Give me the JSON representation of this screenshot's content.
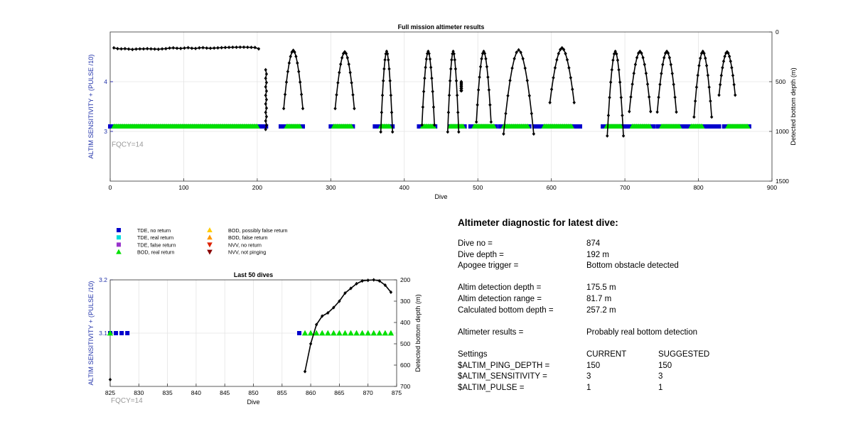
{
  "chart_data": [
    {
      "type": "scatter",
      "title": "Full mission altimeter results",
      "xlabel": "Dive",
      "ylabel_left": "ALTIM SENSITIVITY + (PULSE /10)",
      "ylabel_right": "Detected bottom depth (m)",
      "annotation": "FQCY=14",
      "xlim": [
        0,
        900
      ],
      "x_ticks": [
        "0",
        "100",
        "200",
        "300",
        "400",
        "500",
        "600",
        "700",
        "800",
        "900"
      ],
      "ylim_left": [
        2,
        5
      ],
      "y_ticks_left": [
        "3",
        "4"
      ],
      "ylim_right": [
        1500,
        0
      ],
      "y_ticks_right": [
        "0",
        "500",
        "1000",
        "1500"
      ],
      "grid": true,
      "series": [
        {
          "name": "TDE, no return",
          "color": "#0000cc",
          "marker": "square",
          "y": 3.1,
          "x_ranges": [
            [
              0,
              205
            ],
            [
              208,
              212
            ],
            [
              232,
              262
            ],
            [
              300,
              330
            ],
            [
              360,
              385
            ],
            [
              420,
              442
            ],
            [
              462,
              482
            ],
            [
              490,
              525
            ],
            [
              530,
              570
            ],
            [
              577,
              640
            ],
            [
              670,
              700
            ],
            [
              705,
              740
            ],
            [
              745,
              785
            ],
            [
              790,
              828
            ],
            [
              835,
              870
            ]
          ]
        },
        {
          "name": "BOD, real return",
          "color": "#00e000",
          "marker": "triangle",
          "y": 3.1,
          "x_ranges": [
            [
              5,
              200
            ],
            [
              240,
              258
            ],
            [
              304,
              328
            ],
            [
              368,
              380
            ],
            [
              425,
              440
            ],
            [
              462,
              480
            ],
            [
              495,
              522
            ],
            [
              535,
              568
            ],
            [
              590,
              628
            ],
            [
              675,
              695
            ],
            [
              710,
              735
            ],
            [
              750,
              775
            ],
            [
              790,
              806
            ],
            [
              840,
              868
            ]
          ]
        },
        {
          "name": "Detected bottom depth",
          "color": "#000000",
          "marker": "diamond",
          "axis": "right",
          "flat": {
            "x_start": 5,
            "x_end": 202,
            "depths": [
              160,
              168,
              170,
              168,
              172,
              176,
              172,
              170,
              170,
              168,
              170,
              172,
              174,
              170,
              168,
              162,
              160,
              164,
              166,
              162,
              158,
              164,
              166,
              160,
              158,
              162,
              164,
              162,
              160,
              158,
              156,
              155,
              154,
              154,
              153,
              153,
              154,
              155,
              156,
              170
            ]
          },
          "arcs": [
            {
              "x0": 212,
              "x1": 212,
              "apex": 380,
              "bottom": 980
            },
            {
              "x0": 236,
              "x1": 262,
              "apex": 185,
              "bottom": 770
            },
            {
              "x0": 306,
              "x1": 332,
              "apex": 200,
              "bottom": 770
            },
            {
              "x0": 368,
              "x1": 384,
              "apex": 195,
              "bottom": 1005
            },
            {
              "x0": 424,
              "x1": 441,
              "apex": 195,
              "bottom": 935
            },
            {
              "x0": 459,
              "x1": 474,
              "apex": 195,
              "bottom": 1005
            },
            {
              "x0": 477,
              "x1": 478,
              "apex": 500,
              "bottom": 590
            },
            {
              "x0": 498,
              "x1": 518,
              "apex": 195,
              "bottom": 905
            },
            {
              "x0": 535,
              "x1": 576,
              "apex": 180,
              "bottom": 1025
            },
            {
              "x0": 598,
              "x1": 631,
              "apex": 160,
              "bottom": 710
            },
            {
              "x0": 676,
              "x1": 698,
              "apex": 195,
              "bottom": 1045
            },
            {
              "x0": 706,
              "x1": 735,
              "apex": 195,
              "bottom": 800
            },
            {
              "x0": 744,
              "x1": 770,
              "apex": 195,
              "bottom": 805
            },
            {
              "x0": 794,
              "x1": 818,
              "apex": 195,
              "bottom": 855
            },
            {
              "x0": 828,
              "x1": 850,
              "apex": 200,
              "bottom": 635
            }
          ]
        }
      ]
    },
    {
      "type": "scatter",
      "title": "Last 50 dives",
      "xlabel": "Dive",
      "ylabel_left": "ALTIM SENSITIVITY + (PULSE /10)",
      "ylabel_right": "Detected bottom depth (m)",
      "annotation": "FQCY=14",
      "xlim": [
        825,
        875
      ],
      "x_ticks": [
        "825",
        "830",
        "835",
        "840",
        "845",
        "850",
        "855",
        "860",
        "865",
        "870",
        "875"
      ],
      "ylim_left": [
        3,
        3.2
      ],
      "y_ticks_left": [
        "3.1",
        "3.2"
      ],
      "ylim_right": [
        700,
        200
      ],
      "y_ticks_right": [
        "200",
        "300",
        "400",
        "500",
        "600",
        "700"
      ],
      "grid": true,
      "series": [
        {
          "name": "TDE, no return",
          "color": "#0000cc",
          "marker": "square",
          "y": 3.1,
          "x": [
            825,
            826,
            827,
            828,
            858
          ]
        },
        {
          "name": "BOD, real return",
          "color": "#00e000",
          "marker": "triangle",
          "y": 3.1,
          "x": [
            825,
            859,
            860,
            861,
            862,
            863,
            864,
            865,
            866,
            867,
            868,
            869,
            870,
            871,
            872,
            873,
            874
          ]
        },
        {
          "name": "Detected bottom depth",
          "color": "#000000",
          "marker": "diamond",
          "axis": "right",
          "x": [
            825,
            859,
            860,
            861,
            862,
            863,
            864,
            865,
            866,
            867,
            868,
            869,
            870,
            871,
            872,
            873,
            874
          ],
          "y": [
            668,
            630,
            500,
            410,
            370,
            355,
            330,
            300,
            262,
            240,
            218,
            205,
            202,
            200,
            205,
            225,
            258
          ]
        }
      ]
    }
  ],
  "legend": [
    {
      "label": "TDE, no return",
      "color": "#0000cc",
      "marker": "square"
    },
    {
      "label": "TDE, real return",
      "color": "#00dddd",
      "marker": "square"
    },
    {
      "label": "TDE, false return",
      "color": "#9933cc",
      "marker": "square"
    },
    {
      "label": "BOD, real return",
      "color": "#00e000",
      "marker": "triangle"
    },
    {
      "label": "BOD, possibly false return",
      "color": "#ffcc00",
      "marker": "triangle"
    },
    {
      "label": "BOD, false return",
      "color": "#ff9900",
      "marker": "triangle"
    },
    {
      "label": "NVV, no return",
      "color": "#dd2200",
      "marker": "triangle-down"
    },
    {
      "label": "NVV, not pinging",
      "color": "#880000",
      "marker": "triangle-down"
    }
  ],
  "diagnostic": {
    "title": "Altimeter diagnostic for latest dive:",
    "dive_no_label": "Dive no =",
    "dive_no": "874",
    "dive_depth_label": "Dive depth =",
    "dive_depth": "192 m",
    "apogee_label": "Apogee trigger =",
    "apogee": "Bottom obstacle detected",
    "altim_det_depth_label": "Altim detection depth =",
    "altim_det_depth": "175.5 m",
    "altim_det_range_label": "Altim detection range =",
    "altim_det_range": "81.7 m",
    "calc_bottom_label": "Calculated bottom depth =",
    "calc_bottom": "257.2 m",
    "results_label": "Altimeter results =",
    "results": "Probably real bottom detection",
    "settings_label": "Settings",
    "current_label": "CURRENT",
    "suggested_label": "SUGGESTED",
    "ping_depth_label": "$ALTIM_PING_DEPTH =",
    "ping_depth_current": "150",
    "ping_depth_suggested": "150",
    "sensitivity_label": "$ALTIM_SENSITIVITY =",
    "sensitivity_current": "3",
    "sensitivity_suggested": "3",
    "pulse_label": "$ALTIM_PULSE =",
    "pulse_current": "1",
    "pulse_suggested": "1"
  }
}
